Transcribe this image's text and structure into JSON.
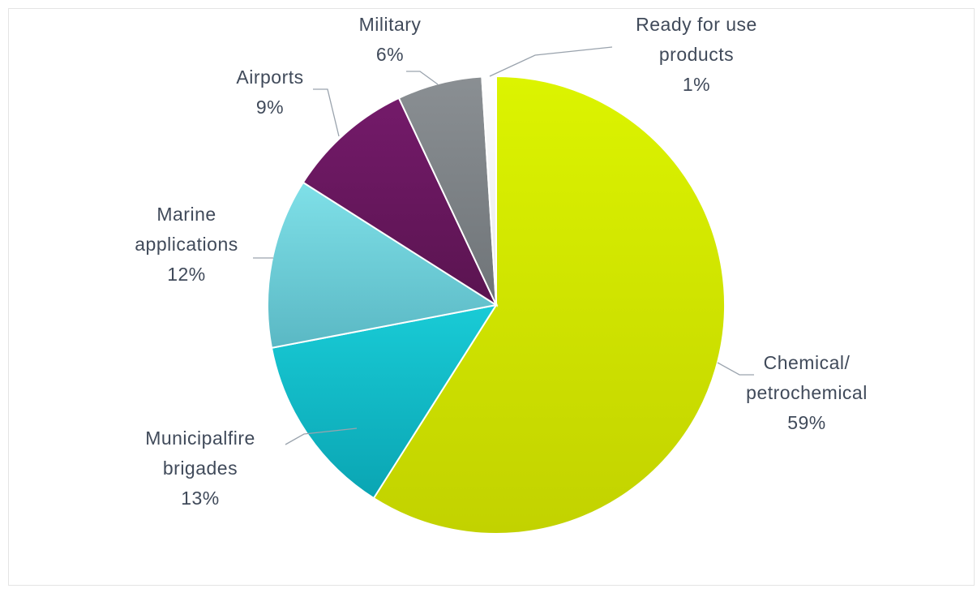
{
  "chart_data": {
    "type": "pie",
    "title": "",
    "legend": "none",
    "slices": [
      {
        "label": "Chemical/ petrochemical",
        "lines": [
          "Chemical/",
          "petrochemical"
        ],
        "value": 59,
        "value_label": "59%",
        "color": "#c2d200",
        "color_light": "#dcf400"
      },
      {
        "label": "Municipal fire brigades",
        "lines": [
          "Municipalfire",
          "brigades"
        ],
        "value": 13,
        "value_label": "13%",
        "color": "#0aa5b3",
        "color_light": "#19cbd6"
      },
      {
        "label": "Marine applications",
        "lines": [
          "Marine",
          "applications"
        ],
        "value": 12,
        "value_label": "12%",
        "color": "#5ab8c4",
        "color_light": "#7fe0e8"
      },
      {
        "label": "Airports",
        "lines": [
          "Airports"
        ],
        "value": 9,
        "value_label": "9%",
        "color": "#5a1450",
        "color_light": "#741a6a"
      },
      {
        "label": "Military",
        "lines": [
          "Military"
        ],
        "value": 6,
        "value_label": "6%",
        "color": "#6f7478",
        "color_light": "#8a8f93"
      },
      {
        "label": "Ready for use products",
        "lines": [
          "Ready for use",
          "products"
        ],
        "value": 1,
        "value_label": "1%",
        "color": "#e6e8ea",
        "color_light": "#ffffff"
      }
    ]
  }
}
